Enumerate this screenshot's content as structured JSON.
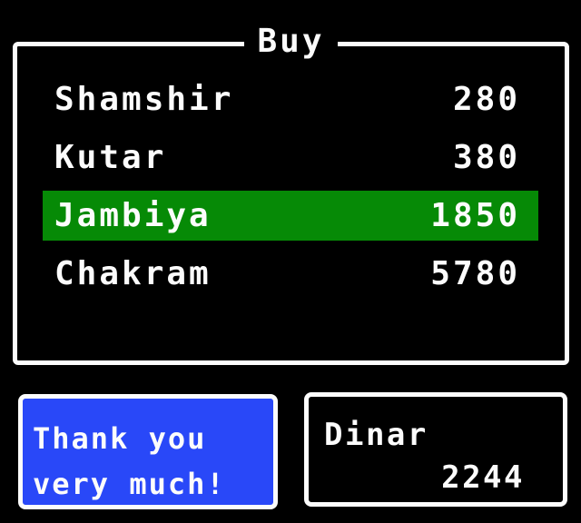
{
  "shop_menu": {
    "title": "Buy",
    "items": [
      {
        "name": "Shamshir",
        "price": "280",
        "selected": false
      },
      {
        "name": "Kutar",
        "price": "380",
        "selected": false
      },
      {
        "name": "Jambiya",
        "price": "1850",
        "selected": true
      },
      {
        "name": "Chakram",
        "price": "5780",
        "selected": false
      }
    ]
  },
  "dialog": {
    "lines": [
      "Thank you",
      "very much!"
    ]
  },
  "currency": {
    "label": "Dinar",
    "amount": "2244"
  },
  "colors": {
    "background": "#000000",
    "text_white": "#fcfcfc",
    "highlight_green": "#068a06",
    "dialog_blue": "#2948f8"
  }
}
